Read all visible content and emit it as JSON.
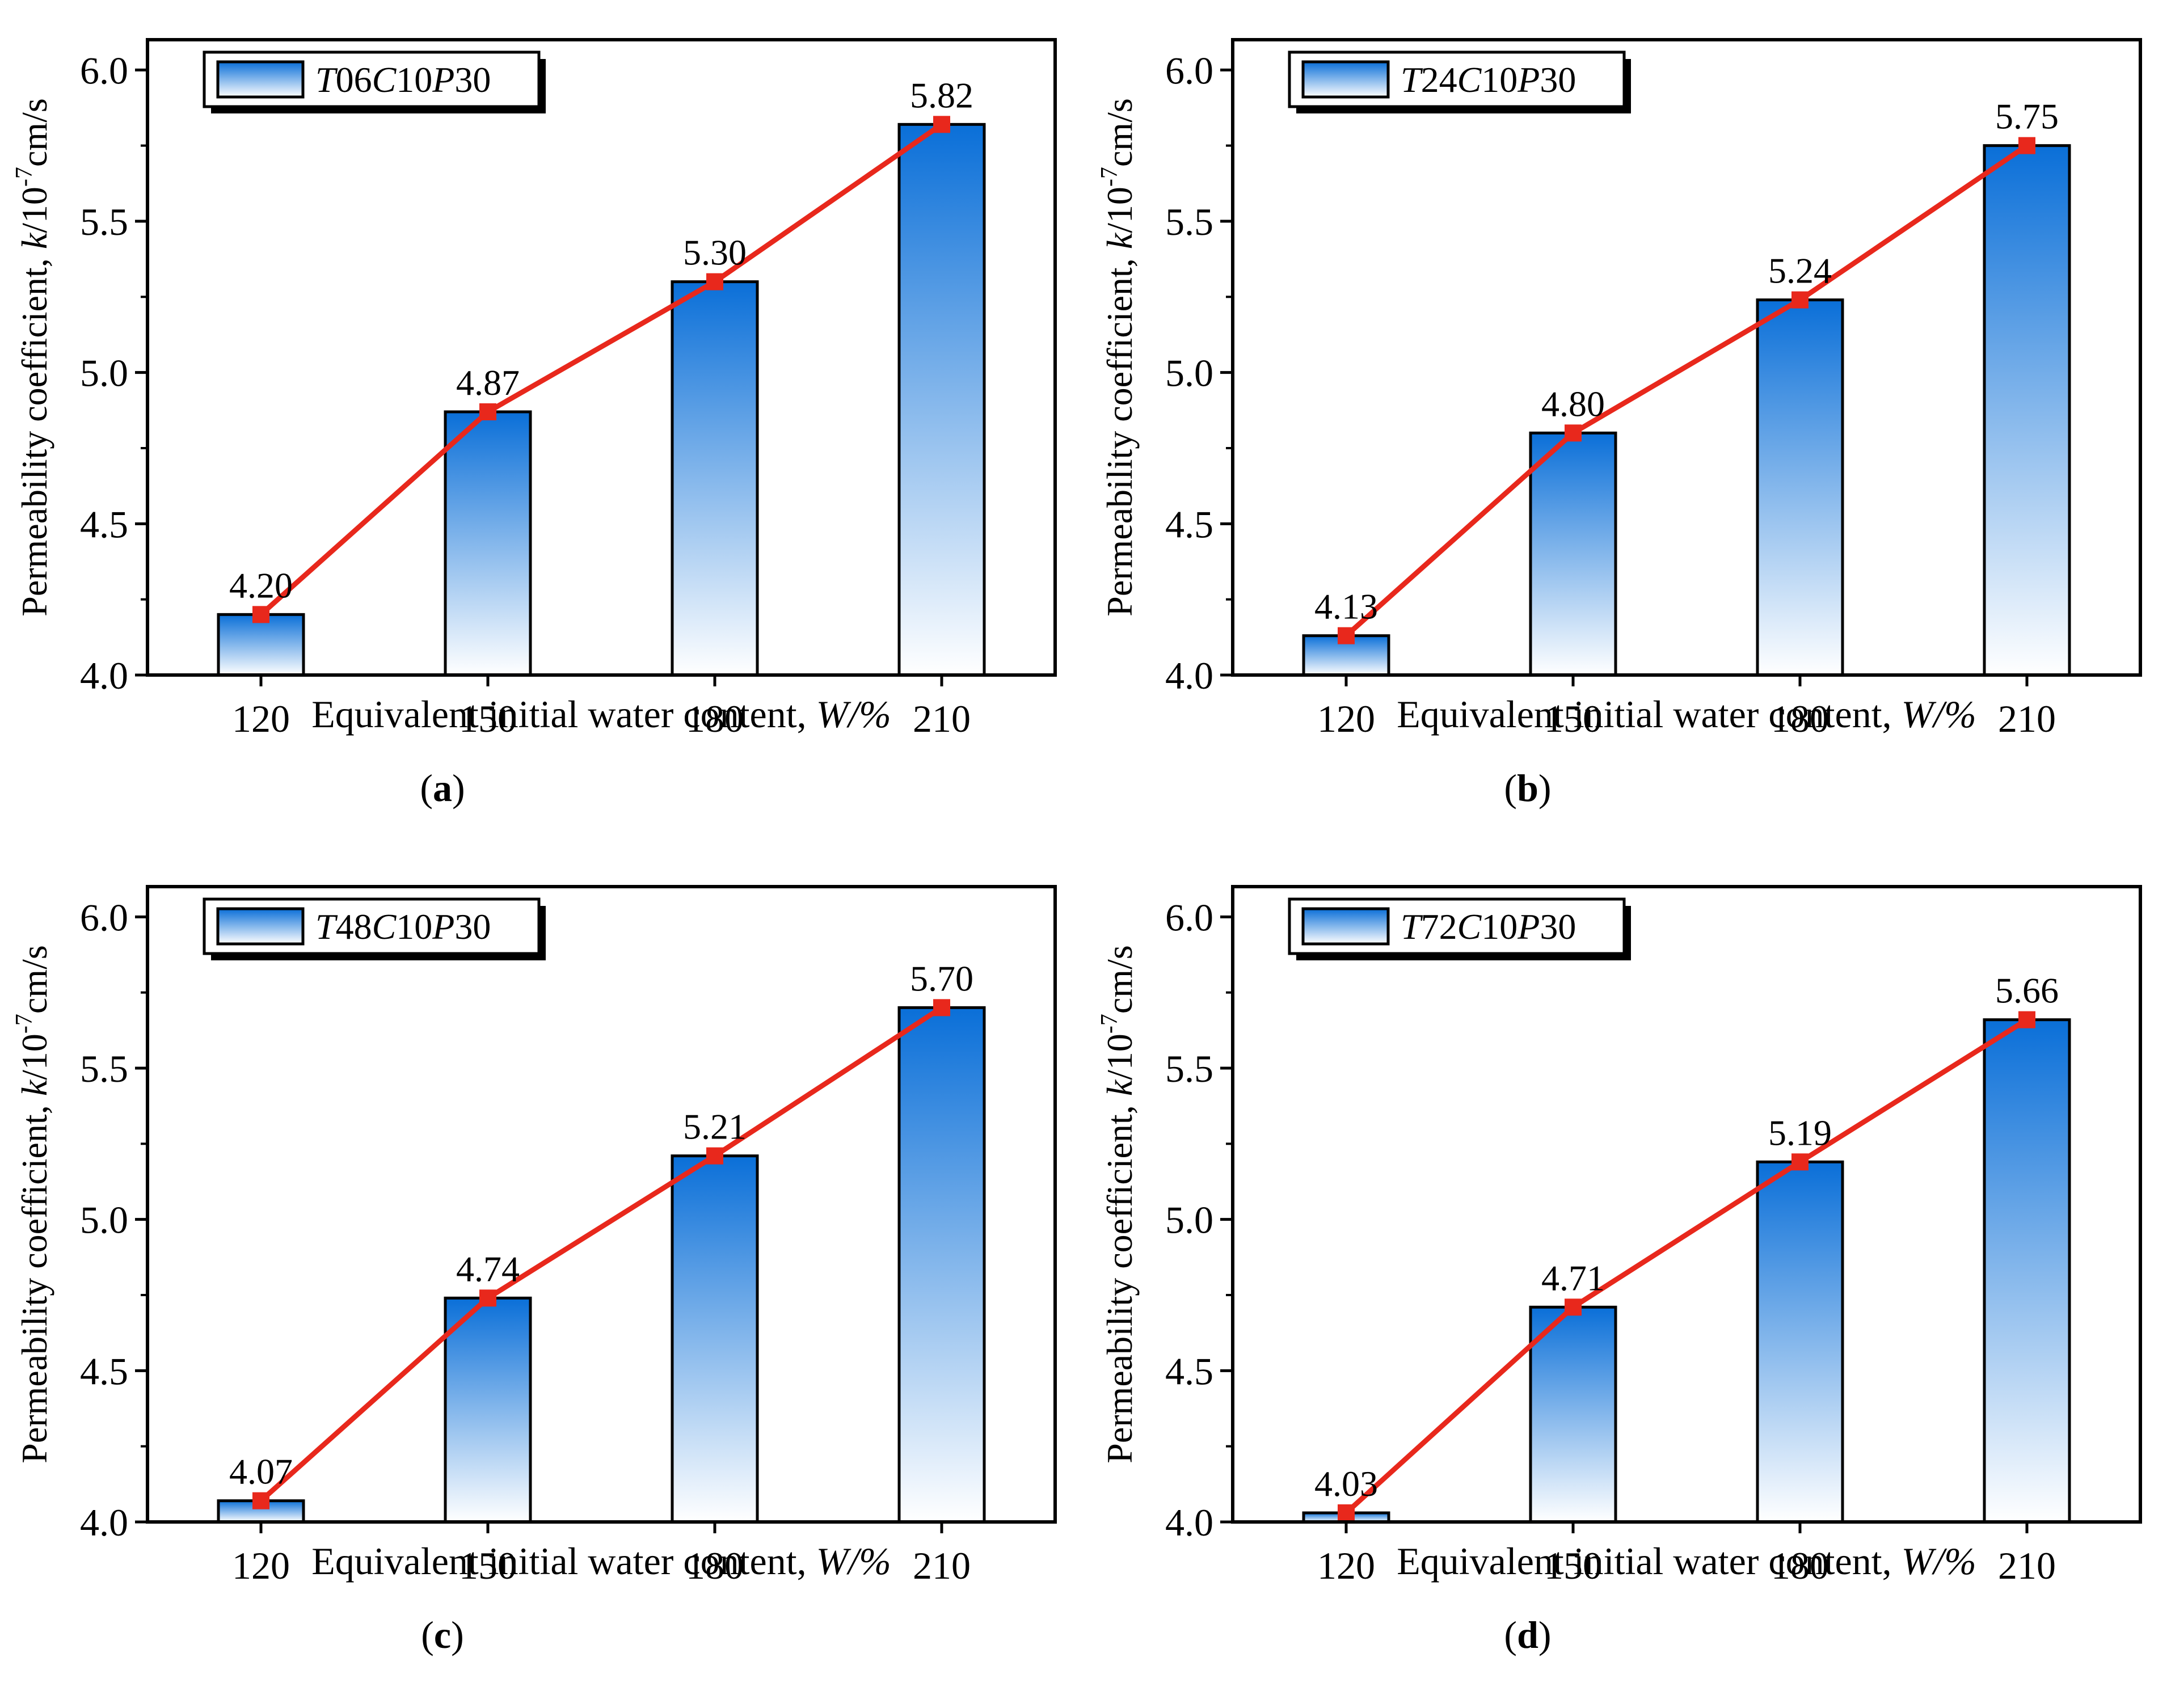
{
  "chart_data": [
    {
      "type": "bar",
      "panel_label": "a",
      "legend": {
        "prefix": "T",
        "a": "06",
        "c": "C",
        "b": "10",
        "p": "P",
        "n": "30"
      },
      "categories": [
        "120",
        "150",
        "180",
        "210"
      ],
      "values": [
        4.2,
        4.87,
        5.3,
        5.82
      ],
      "data_labels": [
        "4.20",
        "4.87",
        "5.30",
        "5.82"
      ],
      "line_overlay": true,
      "ylim": [
        4.0,
        6.1
      ],
      "yticks": [
        "4.0",
        "4.5",
        "5.0",
        "5.5",
        "6.0"
      ],
      "ylabel_main": "Permeability coefficient, ",
      "ylabel_var": "k",
      "ylabel_unit_a": "/10",
      "ylabel_exp": "-7",
      "ylabel_unit_b": "cm/s",
      "xlabel_main": "Equivalent initial water content, ",
      "xlabel_var": "W",
      "xlabel_unit": "/%"
    },
    {
      "type": "bar",
      "panel_label": "b",
      "legend": {
        "prefix": "T",
        "a": "24",
        "c": "C",
        "b": "10",
        "p": "P",
        "n": "30"
      },
      "categories": [
        "120",
        "150",
        "180",
        "210"
      ],
      "values": [
        4.13,
        4.8,
        5.24,
        5.75
      ],
      "data_labels": [
        "4.13",
        "4.80",
        "5.24",
        "5.75"
      ],
      "line_overlay": true,
      "ylim": [
        4.0,
        6.1
      ],
      "yticks": [
        "4.0",
        "4.5",
        "5.0",
        "5.5",
        "6.0"
      ],
      "ylabel_main": "Permeability coefficient, ",
      "ylabel_var": "k",
      "ylabel_unit_a": "/10",
      "ylabel_exp": "-7",
      "ylabel_unit_b": "cm/s",
      "xlabel_main": "Equivalent initial water content, ",
      "xlabel_var": "W",
      "xlabel_unit": "/%"
    },
    {
      "type": "bar",
      "panel_label": "c",
      "legend": {
        "prefix": "T",
        "a": "48",
        "c": "C",
        "b": "10",
        "p": "P",
        "n": "30"
      },
      "categories": [
        "120",
        "150",
        "180",
        "210"
      ],
      "values": [
        4.07,
        4.74,
        5.21,
        5.7
      ],
      "data_labels": [
        "4.07",
        "4.74",
        "5.21",
        "5.70"
      ],
      "line_overlay": true,
      "ylim": [
        4.0,
        6.1
      ],
      "yticks": [
        "4.0",
        "4.5",
        "5.0",
        "5.5",
        "6.0"
      ],
      "ylabel_main": "Permeability coefficient, ",
      "ylabel_var": "k",
      "ylabel_unit_a": "/10",
      "ylabel_exp": "-7",
      "ylabel_unit_b": "cm/s",
      "xlabel_main": "Equivalent initial water content, ",
      "xlabel_var": "W",
      "xlabel_unit": "/%"
    },
    {
      "type": "bar",
      "panel_label": "d",
      "legend": {
        "prefix": "T",
        "a": "72",
        "c": "C",
        "b": "10",
        "p": "P",
        "n": "30"
      },
      "categories": [
        "120",
        "150",
        "180",
        "210"
      ],
      "values": [
        4.03,
        4.71,
        5.19,
        5.66
      ],
      "data_labels": [
        "4.03",
        "4.71",
        "5.19",
        "5.66"
      ],
      "line_overlay": true,
      "ylim": [
        4.0,
        6.1
      ],
      "yticks": [
        "4.0",
        "4.5",
        "5.0",
        "5.5",
        "6.0"
      ],
      "ylabel_main": "Permeability coefficient, ",
      "ylabel_var": "k",
      "ylabel_unit_a": "/10",
      "ylabel_exp": "-7",
      "ylabel_unit_b": "cm/s",
      "xlabel_main": "Equivalent initial water content, ",
      "xlabel_var": "W",
      "xlabel_unit": "/%"
    }
  ],
  "colors": {
    "bar_top": "#0a6fd8",
    "bar_bottom": "#ffffff",
    "line": "#e8281c",
    "axis": "#000000"
  }
}
